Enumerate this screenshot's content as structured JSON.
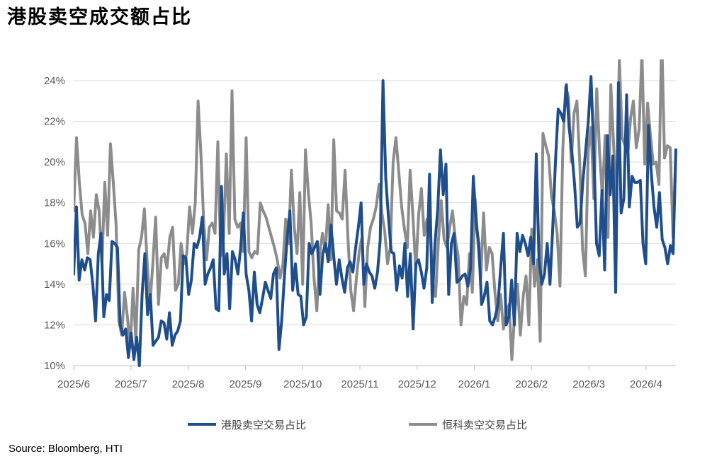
{
  "title": "港股卖空成交额占比",
  "source": "Source: Bloomberg, HTI",
  "chart_data": {
    "type": "line",
    "title": "港股卖空成交额占比",
    "xlabel": "",
    "ylabel": "",
    "x_ticks": [
      "2025/6",
      "2025/7",
      "2025/8",
      "2025/9",
      "2025/10",
      "2025/11",
      "2025/12",
      "2026/1",
      "2026/2",
      "2026/3",
      "2026/4"
    ],
    "y_ticks": [
      "10%",
      "12%",
      "14%",
      "16%",
      "18%",
      "20%",
      "22%",
      "24%"
    ],
    "ylim": [
      10,
      25
    ],
    "grid": true,
    "legend_position": "bottom",
    "colors": {
      "hk": "#1f4e8c",
      "hstech": "#8c8c8c"
    },
    "series": [
      {
        "name": "港股卖空交易占比",
        "color": "#1f4e8c",
        "values": [
          14.5,
          17.8,
          14.2,
          15.2,
          14.7,
          15.3,
          15.2,
          14.0,
          12.2,
          15.5,
          16.5,
          12.4,
          13.5,
          13.2,
          16.1,
          16.0,
          15.8,
          12.0,
          11.5,
          11.8,
          10.4,
          11.6,
          10.3,
          11.4,
          10.0,
          13.5,
          15.5,
          12.5,
          13.5,
          11.0,
          11.2,
          11.4,
          12.2,
          12.1,
          11.3,
          12.6,
          11.0,
          11.5,
          11.7,
          12.2,
          15.4,
          15.3,
          13.5,
          14.2,
          16.0,
          15.8,
          16.3,
          17.3,
          14.0,
          14.5,
          14.8,
          15.2,
          12.8,
          12.7,
          18.8,
          14.5,
          15.5,
          12.8,
          15.6,
          15.2,
          14.5,
          15.8,
          17.5,
          14.5,
          13.7,
          12.2,
          14.6,
          13.0,
          12.6,
          13.3,
          14.1,
          13.7,
          13.3,
          14.5,
          14.8,
          10.8,
          12.2,
          14.4,
          16.3,
          17.6,
          13.7,
          15.0,
          13.5,
          13.4,
          12.0,
          12.4,
          16.0,
          15.5,
          15.8,
          16.1,
          13.5,
          15.5,
          16.0,
          15.1,
          16.9,
          15.4,
          14.0,
          15.2,
          14.3,
          13.6,
          14.8,
          15.1,
          14.6,
          15.8,
          16.8,
          18.0,
          14.0,
          15.0,
          14.6,
          14.4,
          13.8,
          14.6,
          16.2,
          24.0,
          19.2,
          17.3,
          15.6,
          15.5,
          13.7,
          14.9,
          14.3,
          16.0,
          13.4,
          15.5,
          11.8,
          15.0,
          15.2,
          14.6,
          13.8,
          14.8,
          19.4,
          13.1,
          16.0,
          17.7,
          20.6,
          18.4,
          19.9,
          13.5,
          16.0,
          16.5,
          14.1,
          14.2,
          14.4,
          14.5,
          13.9,
          14.8,
          19.3,
          17.0,
          16.0,
          13.0,
          13.4,
          14.1,
          12.2,
          12.0,
          12.4,
          13.0,
          14.8,
          16.5,
          12.0,
          12.4,
          14.2,
          12.0,
          16.5,
          15.6,
          16.4,
          16.0,
          15.4,
          16.3,
          15.0,
          20.4,
          15.2,
          14.0,
          14.5,
          16.0,
          14.0,
          16.7,
          20.0,
          22.6,
          22.4,
          22.0,
          23.8,
          21.7,
          20.5,
          18.9,
          16.8,
          17.0,
          19.0,
          20.5,
          22.0,
          24.2,
          20.6,
          16.0,
          15.4,
          18.6,
          14.7,
          21.3,
          18.4,
          20.3,
          13.6,
          23.9,
          17.5,
          18.2,
          23.3,
          17.8,
          19.3,
          19.0,
          19.0,
          19.1,
          16.0,
          15.0,
          21.8,
          19.5,
          17.8,
          16.8,
          18.5,
          16.2,
          15.8,
          15.0,
          15.9,
          15.5,
          20.6
        ]
      },
      {
        "name": "恒科卖空交易占比",
        "color": "#8c8c8c",
        "values": [
          17.6,
          21.2,
          19.0,
          17.4,
          17.0,
          15.5,
          17.6,
          16.3,
          18.4,
          17.6,
          15.0,
          19.0,
          16.4,
          20.9,
          19.0,
          16.9,
          12.2,
          11.5,
          13.6,
          12.4,
          10.9,
          13.8,
          11.2,
          15.7,
          16.3,
          17.7,
          15.0,
          13.0,
          15.0,
          17.3,
          13.0,
          15.3,
          15.5,
          14.8,
          16.3,
          16.8,
          13.7,
          14.0,
          16.0,
          15.0,
          15.5,
          17.8,
          16.5,
          18.0,
          23.0,
          20.4,
          17.0,
          15.2,
          16.8,
          17.0,
          16.5,
          21.0,
          15.4,
          16.3,
          20.4,
          16.5,
          23.5,
          17.2,
          16.8,
          17.0,
          15.6,
          21.2,
          15.6,
          15.3,
          15.6,
          15.5,
          18.0,
          17.6,
          17.3,
          16.8,
          16.3,
          15.8,
          15.2,
          14.3,
          15.0,
          17.2,
          16.0,
          19.6,
          16.8,
          15.5,
          18.5,
          14.0,
          20.6,
          18.5,
          17.0,
          14.3,
          12.7,
          15.5,
          16.5,
          15.6,
          17.9,
          15.2,
          21.1,
          17.6,
          17.5,
          17.2,
          19.6,
          16.3,
          13.7,
          12.7,
          14.3,
          15.6,
          16.3,
          12.9,
          15.8,
          16.8,
          17.2,
          17.8,
          18.9,
          17.5,
          16.6,
          15.0,
          15.8,
          20.0,
          21.2,
          19.5,
          17.8,
          16.7,
          15.8,
          19.6,
          17.3,
          14.7,
          17.4,
          18.7,
          16.4,
          17.2,
          17.0,
          14.1,
          13.4,
          16.1,
          18.1,
          16.2,
          15.8,
          16.8,
          17.6,
          16.2,
          15.4,
          12.0,
          13.4,
          13.0,
          15.5,
          13.6,
          18.2,
          16.0,
          14.3,
          17.5,
          14.7,
          15.8,
          15.5,
          13.6,
          12.2,
          13.5,
          11.8,
          12.6,
          13.0,
          10.3,
          12.6,
          14.0,
          11.5,
          13.4,
          14.4,
          12.0,
          16.7,
          13.9,
          15.2,
          11.2,
          21.4,
          20.8,
          20.3,
          18.3,
          17.6,
          16.5,
          13.9,
          20.6,
          23.7,
          23.2,
          20.0,
          22.4,
          23.0,
          20.0,
          15.7,
          14.4,
          20.6,
          21.7,
          18.2,
          23.6,
          20.5,
          18.3,
          21.3,
          16.3,
          23.8,
          20.8,
          17.8,
          25.1,
          21.2,
          20.8,
          20.4,
          22.2,
          23.0,
          20.7,
          21.6,
          25.4,
          19.9,
          22.9,
          21.3,
          19.9,
          20.0,
          18.9,
          26.3,
          20.2,
          20.8,
          20.7,
          16.3,
          20.6
        ]
      }
    ]
  }
}
